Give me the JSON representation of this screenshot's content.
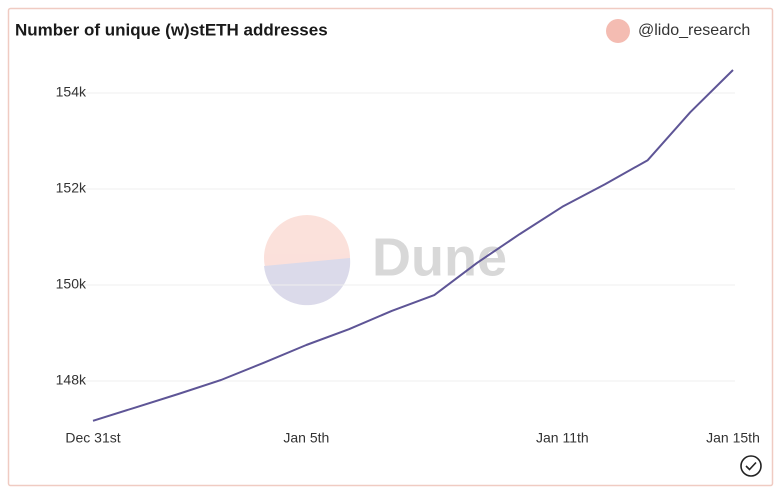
{
  "title": "Number of unique (w)stETH addresses",
  "author": "@lido_research",
  "watermark": "Dune",
  "chart_data": {
    "type": "line",
    "categories": [
      "Dec 31st",
      null,
      null,
      null,
      null,
      "Jan 5th",
      null,
      null,
      null,
      null,
      null,
      "Jan 11th",
      null,
      null,
      null,
      "Jan 15th"
    ],
    "series": [
      {
        "color": "#5e5596",
        "values": [
          147170,
          147450,
          147730,
          148020,
          148380,
          148750,
          149080,
          149460,
          149790,
          150460,
          151060,
          151630,
          152100,
          152600,
          153600,
          154480
        ]
      }
    ],
    "ylim": [
      147100,
      154800
    ],
    "yticks": [
      {
        "value": 148000,
        "label": "148k"
      },
      {
        "value": 150000,
        "label": "150k"
      },
      {
        "value": 152000,
        "label": "152k"
      },
      {
        "value": 154000,
        "label": "154k"
      }
    ],
    "grid": true
  }
}
